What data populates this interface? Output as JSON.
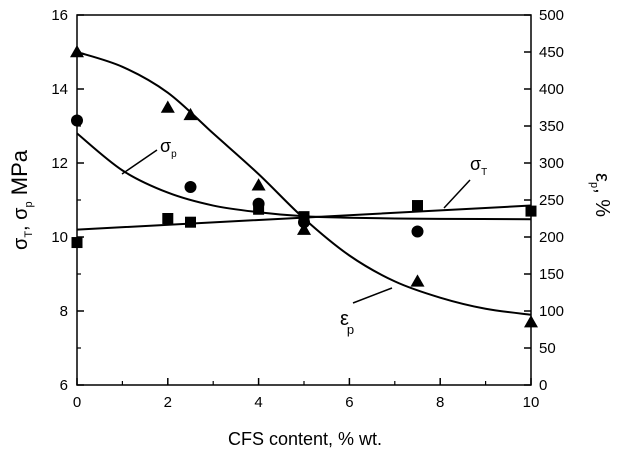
{
  "chart_data": {
    "type": "scatter",
    "xlabel": "CFS content, % wt.",
    "ylabel_left": {
      "parts": [
        "σ",
        "T",
        ", σ",
        "p",
        " MPa"
      ]
    },
    "ylabel_right": {
      "parts": [
        "ε",
        "p",
        ", %"
      ]
    },
    "xlim": [
      0,
      10
    ],
    "ylim_left": [
      6,
      16
    ],
    "ylim_right": [
      0,
      500
    ],
    "x_ticks": [
      0,
      2,
      4,
      6,
      8,
      10
    ],
    "x_tick_labels": [
      "0",
      "2",
      "4",
      "6",
      "8",
      "10"
    ],
    "y_left_ticks": [
      6,
      8,
      10,
      12,
      14,
      16
    ],
    "y_left_tick_labels": [
      "6",
      "8",
      "10",
      "12",
      "14",
      "16"
    ],
    "y_right_ticks": [
      0,
      50,
      100,
      150,
      200,
      250,
      300,
      350,
      400,
      450,
      500
    ],
    "y_right_tick_labels": [
      "0",
      "50",
      "100",
      "150",
      "200",
      "250",
      "300",
      "350",
      "400",
      "450",
      "500"
    ],
    "grid": false,
    "series": [
      {
        "id": "sigma_T",
        "axis": "left",
        "marker": "square",
        "label_parts": [
          "σ",
          "T"
        ],
        "points": [
          {
            "x": 0,
            "y": 9.85
          },
          {
            "x": 2,
            "y": 10.5
          },
          {
            "x": 2.5,
            "y": 10.4
          },
          {
            "x": 4,
            "y": 10.75
          },
          {
            "x": 5,
            "y": 10.55
          },
          {
            "x": 7.5,
            "y": 10.85
          },
          {
            "x": 10,
            "y": 10.7
          }
        ],
        "fit": [
          {
            "x": 0,
            "y": 10.2
          },
          {
            "x": 10,
            "y": 10.85
          }
        ]
      },
      {
        "id": "sigma_p",
        "axis": "left",
        "marker": "circle",
        "label_parts": [
          "σ",
          "p"
        ],
        "points": [
          {
            "x": 0,
            "y": 13.15
          },
          {
            "x": 2.5,
            "y": 11.35
          },
          {
            "x": 4,
            "y": 10.9
          },
          {
            "x": 5,
            "y": 10.4
          },
          {
            "x": 7.5,
            "y": 10.15
          }
        ],
        "fit": [
          {
            "x": 0,
            "y": 12.8
          },
          {
            "x": 1,
            "y": 11.8
          },
          {
            "x": 2,
            "y": 11.2
          },
          {
            "x": 3,
            "y": 10.85
          },
          {
            "x": 4,
            "y": 10.67
          },
          {
            "x": 5,
            "y": 10.56
          },
          {
            "x": 6,
            "y": 10.52
          },
          {
            "x": 7,
            "y": 10.5
          },
          {
            "x": 8,
            "y": 10.49
          },
          {
            "x": 10,
            "y": 10.48
          }
        ]
      },
      {
        "id": "epsilon_p",
        "axis": "right",
        "marker": "triangle",
        "label_parts": [
          "ε",
          "p"
        ],
        "points": [
          {
            "x": 0,
            "y": 450
          },
          {
            "x": 2,
            "y": 375
          },
          {
            "x": 2.5,
            "y": 365
          },
          {
            "x": 4,
            "y": 270
          },
          {
            "x": 5,
            "y": 210
          },
          {
            "x": 7.5,
            "y": 140
          },
          {
            "x": 10,
            "y": 85
          }
        ],
        "fit": [
          {
            "x": 0,
            "y": 450
          },
          {
            "x": 1,
            "y": 430
          },
          {
            "x": 2,
            "y": 395
          },
          {
            "x": 3,
            "y": 340
          },
          {
            "x": 4,
            "y": 285
          },
          {
            "x": 5,
            "y": 225
          },
          {
            "x": 6,
            "y": 175
          },
          {
            "x": 7,
            "y": 140
          },
          {
            "x": 8,
            "y": 118
          },
          {
            "x": 9,
            "y": 103
          },
          {
            "x": 10,
            "y": 95
          }
        ]
      }
    ]
  }
}
